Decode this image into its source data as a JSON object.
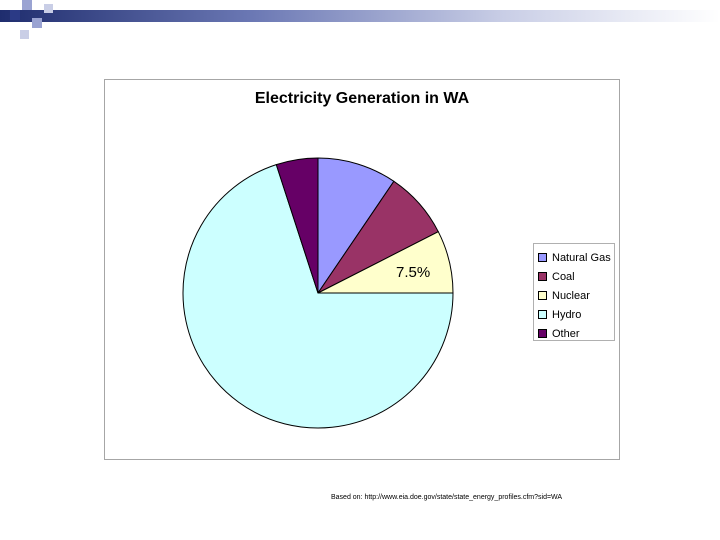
{
  "chart_data": {
    "type": "pie",
    "title": "Electricity Generation  in WA",
    "categories": [
      "Natural Gas",
      "Coal",
      "Nuclear",
      "Hydro",
      "Other"
    ],
    "values": [
      9.5,
      8,
      7.5,
      70,
      5
    ],
    "colors": [
      "#9999ff",
      "#993366",
      "#ffffcc",
      "#ccffff",
      "#660066"
    ],
    "data_labels": [
      {
        "category": "Nuclear",
        "text": "7.5%"
      }
    ],
    "legend": "right"
  },
  "footer": {
    "source": "Based on:  http://www.eia.doe.gov/state/state_energy_profiles.cfm?sid=WA"
  },
  "decor": {
    "colors": {
      "bar_dark": "#1f2d6e",
      "square_dark": "#2b3a86",
      "square_light": "#9aa3d2"
    }
  }
}
